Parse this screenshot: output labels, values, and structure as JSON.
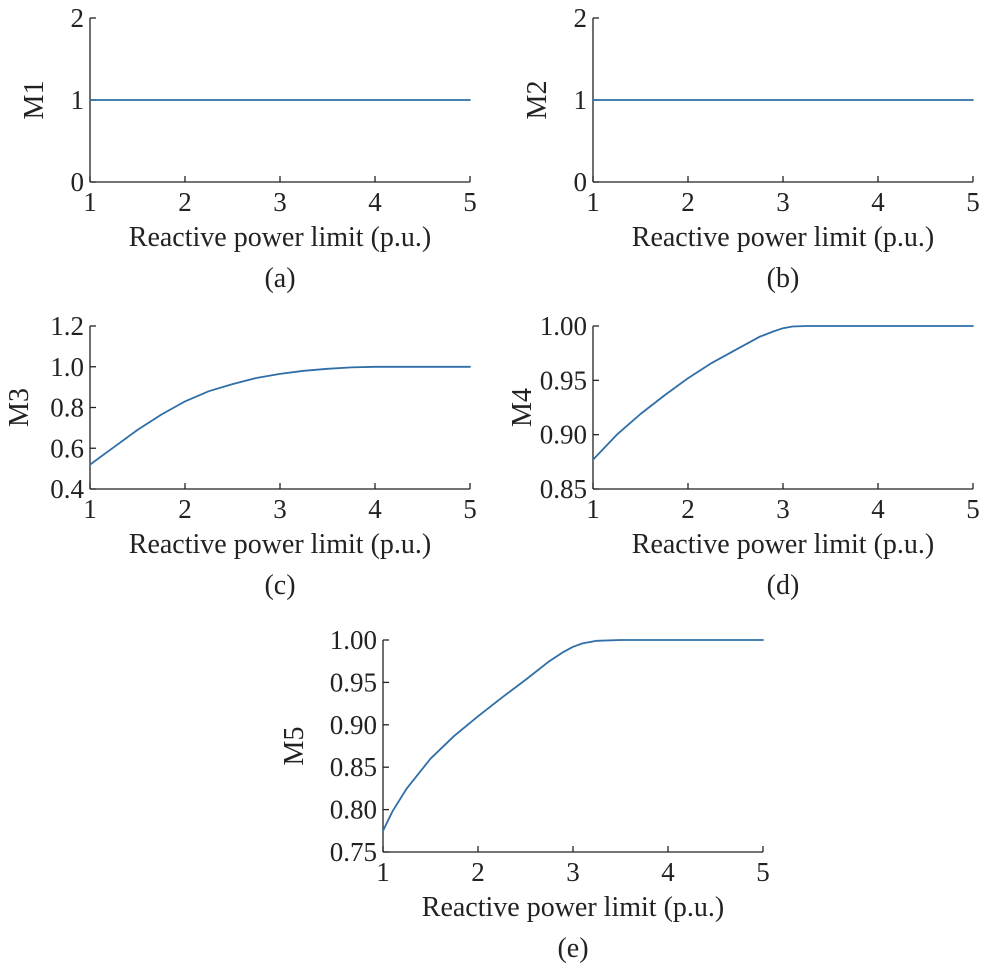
{
  "chart_data": [
    {
      "type": "line",
      "panel_label": "(a)",
      "xlabel": "Reactive power limit (p.u.)",
      "ylabel": "M1",
      "xlim": [
        1,
        5
      ],
      "ylim": [
        0,
        2
      ],
      "xticks": [
        1,
        2,
        3,
        4,
        5
      ],
      "xtick_labels": [
        "1",
        "2",
        "3",
        "4",
        "5"
      ],
      "yticks": [
        0,
        1,
        2
      ],
      "ytick_labels": [
        "0",
        "1",
        "2"
      ],
      "grid": false,
      "series": [
        {
          "color": "#2f6ea6",
          "x": [
            1,
            2,
            3,
            4,
            5
          ],
          "y": [
            1,
            1,
            1,
            1,
            1
          ]
        }
      ]
    },
    {
      "type": "line",
      "panel_label": "(b)",
      "xlabel": "Reactive power limit (p.u.)",
      "ylabel": "M2",
      "xlim": [
        1,
        5
      ],
      "ylim": [
        0,
        2
      ],
      "xticks": [
        1,
        2,
        3,
        4,
        5
      ],
      "xtick_labels": [
        "1",
        "2",
        "3",
        "4",
        "5"
      ],
      "yticks": [
        0,
        1,
        2
      ],
      "ytick_labels": [
        "0",
        "1",
        "2"
      ],
      "grid": false,
      "series": [
        {
          "color": "#2f6ea6",
          "x": [
            1,
            2,
            3,
            4,
            5
          ],
          "y": [
            1,
            1,
            1,
            1,
            1
          ]
        }
      ]
    },
    {
      "type": "line",
      "panel_label": "(c)",
      "xlabel": "Reactive power limit (p.u.)",
      "ylabel": "M3",
      "xlim": [
        1,
        5
      ],
      "ylim": [
        0.4,
        1.2
      ],
      "xticks": [
        1,
        2,
        3,
        4,
        5
      ],
      "xtick_labels": [
        "1",
        "2",
        "3",
        "4",
        "5"
      ],
      "yticks": [
        0.4,
        0.6,
        0.8,
        1.0,
        1.2
      ],
      "ytick_labels": [
        "0.4",
        "0.6",
        "0.8",
        "1.0",
        "1.2"
      ],
      "grid": false,
      "series": [
        {
          "color": "#2f6ea6",
          "x": [
            1.0,
            1.25,
            1.5,
            1.75,
            2.0,
            2.25,
            2.5,
            2.75,
            3.0,
            3.25,
            3.5,
            3.75,
            4.0,
            4.25,
            4.5,
            4.75,
            5.0
          ],
          "y": [
            0.52,
            0.605,
            0.69,
            0.765,
            0.83,
            0.88,
            0.915,
            0.945,
            0.965,
            0.98,
            0.99,
            0.997,
            1.0,
            1.0,
            1.0,
            1.0,
            1.0
          ]
        }
      ]
    },
    {
      "type": "line",
      "panel_label": "(d)",
      "xlabel": "Reactive power limit (p.u.)",
      "ylabel": "M4",
      "xlim": [
        1,
        5
      ],
      "ylim": [
        0.85,
        1.0
      ],
      "xticks": [
        1,
        2,
        3,
        4,
        5
      ],
      "xtick_labels": [
        "1",
        "2",
        "3",
        "4",
        "5"
      ],
      "yticks": [
        0.85,
        0.9,
        0.95,
        1.0
      ],
      "ytick_labels": [
        "0.85",
        "0.90",
        "0.95",
        "1.00"
      ],
      "grid": false,
      "series": [
        {
          "color": "#2f6ea6",
          "x": [
            1.0,
            1.25,
            1.5,
            1.75,
            2.0,
            2.25,
            2.5,
            2.75,
            2.9,
            3.0,
            3.1,
            3.25,
            3.5,
            3.75,
            4.0,
            4.5,
            5.0
          ],
          "y": [
            0.877,
            0.9,
            0.919,
            0.936,
            0.952,
            0.966,
            0.978,
            0.99,
            0.995,
            0.998,
            0.9995,
            1.0,
            1.0,
            1.0,
            1.0,
            1.0,
            1.0
          ]
        }
      ]
    },
    {
      "type": "line",
      "panel_label": "(e)",
      "xlabel": "Reactive power limit (p.u.)",
      "ylabel": "M5",
      "xlim": [
        1,
        5
      ],
      "ylim": [
        0.75,
        1.0
      ],
      "xticks": [
        1,
        2,
        3,
        4,
        5
      ],
      "xtick_labels": [
        "1",
        "2",
        "3",
        "4",
        "5"
      ],
      "yticks": [
        0.75,
        0.8,
        0.85,
        0.9,
        0.95,
        1.0
      ],
      "ytick_labels": [
        "0.75",
        "0.80",
        "0.85",
        "0.90",
        "0.95",
        "1.00"
      ],
      "grid": false,
      "series": [
        {
          "color": "#2f6ea6",
          "x": [
            1.0,
            1.1,
            1.25,
            1.5,
            1.75,
            2.0,
            2.25,
            2.5,
            2.75,
            2.9,
            3.0,
            3.1,
            3.25,
            3.5,
            3.75,
            4.0,
            4.5,
            5.0
          ],
          "y": [
            0.775,
            0.798,
            0.825,
            0.86,
            0.887,
            0.91,
            0.932,
            0.953,
            0.975,
            0.986,
            0.992,
            0.996,
            0.999,
            1.0,
            1.0,
            1.0,
            1.0,
            1.0
          ]
        }
      ]
    }
  ]
}
